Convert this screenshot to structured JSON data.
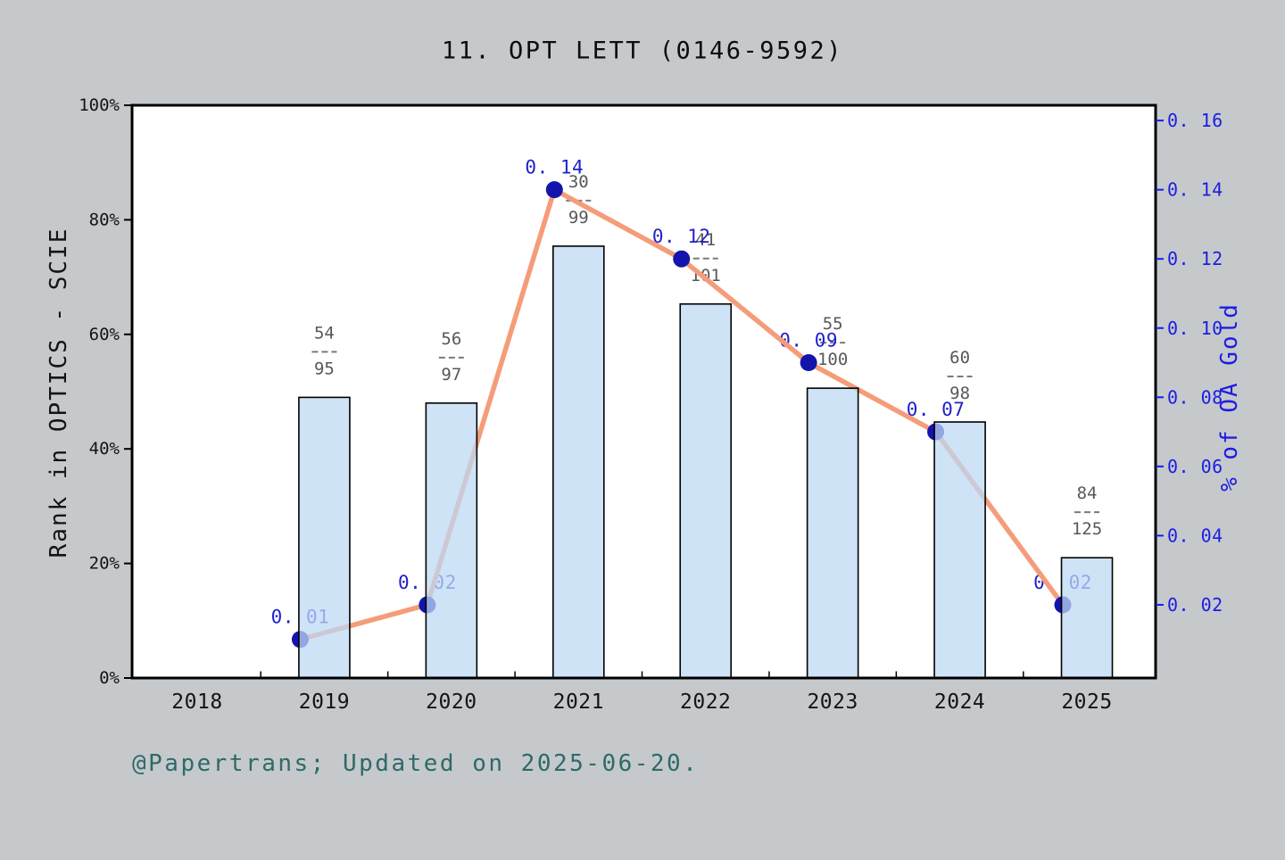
{
  "title": "11. OPT LETT (0146-9592)",
  "caption": "@Papertrans; Updated on 2025-06-20.",
  "left_axis": {
    "label": "Rank in OPTICS - SCIE",
    "ticks": [
      "0%",
      "20%",
      "40%",
      "60%",
      "80%",
      "100%"
    ]
  },
  "right_axis": {
    "label": "% of OA Gold",
    "ticks": [
      "0. 02",
      "0. 04",
      "0. 06",
      "0. 08",
      "0. 10",
      "0. 12",
      "0. 14",
      "0. 16"
    ]
  },
  "x_axis": {
    "ticks": [
      "2018",
      "2019",
      "2020",
      "2021",
      "2022",
      "2023",
      "2024",
      "2025"
    ]
  },
  "chart_data": {
    "type": "bar+line",
    "title": "11. OPT LETT (0146-9592)",
    "categories": [
      "2018",
      "2019",
      "2020",
      "2021",
      "2022",
      "2023",
      "2024",
      "2025"
    ],
    "grid": false,
    "legend": "none",
    "bar_series": {
      "name": "Rank in OPTICS - SCIE",
      "axis": "left",
      "unit": "%",
      "ylim": [
        0,
        100
      ],
      "rank": [
        null,
        54,
        56,
        30,
        41,
        55,
        60,
        84
      ],
      "total": [
        null,
        95,
        97,
        99,
        101,
        100,
        98,
        125
      ],
      "bar_height_pct": [
        null,
        49.0,
        48.0,
        75.4,
        65.3,
        50.6,
        44.7,
        21.0
      ]
    },
    "line_series": {
      "name": "% of OA Gold",
      "axis": "right",
      "ylim": [
        0,
        0.1655
      ],
      "values": [
        null,
        0.01,
        0.02,
        0.14,
        0.12,
        0.09,
        0.07,
        0.02
      ],
      "point_labels": [
        null,
        "0. 01",
        "0. 02",
        "0. 14",
        "0. 12",
        "0. 09",
        "0. 07",
        "0. 02"
      ]
    }
  },
  "colors": {
    "background": "#c5c9cc",
    "plot_background": "#ffffff",
    "bar_fill": "rgba(190,217,244,0.74)",
    "bar_edge": "#000000",
    "line": "#f59c7a",
    "marker": "#1414ad",
    "value_label": "#2020cc",
    "fraction_label": "#58585c",
    "fraction_dash": "#7a7a7e",
    "right_axis": "#1d1de0",
    "left_axis_tick": "#000000",
    "caption": "#2d6a68",
    "spine": "#000000"
  }
}
